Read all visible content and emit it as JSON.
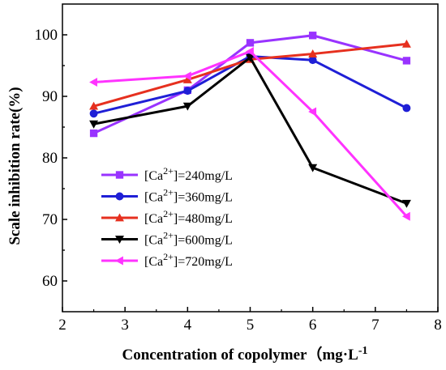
{
  "chart_data": {
    "type": "line",
    "xlabel": "Concentration of copolymer（mg·L",
    "xlabel_sup": "-1",
    "ylabel": "Scale inhibition rate(%)",
    "xlim": [
      2,
      8
    ],
    "ylim": [
      55,
      105
    ],
    "xticks": [
      "2",
      "3",
      "4",
      "5",
      "6",
      "7",
      "8"
    ],
    "yticks": [
      "60",
      "70",
      "80",
      "90",
      "100"
    ],
    "grid": false,
    "legend_position": "bottom-left",
    "series": [
      {
        "label_prefix": "[Ca",
        "label_sup": "2+",
        "label_suffix": "]=240mg/L",
        "color": "#9933ff",
        "marker": "square",
        "x": [
          2.5,
          4,
          5,
          6,
          7.5
        ],
        "y": [
          84.0,
          91.0,
          98.7,
          99.9,
          95.8
        ]
      },
      {
        "label_prefix": "[Ca",
        "label_sup": "2+",
        "label_suffix": "]=360mg/L",
        "color": "#1f1fd6",
        "marker": "circle",
        "x": [
          2.5,
          4,
          5,
          6,
          7.5
        ],
        "y": [
          87.2,
          90.9,
          96.5,
          95.9,
          88.1
        ]
      },
      {
        "label_prefix": "[Ca",
        "label_sup": "2+",
        "label_suffix": "]=480mg/L",
        "color": "#e6301f",
        "marker": "triangle-up",
        "x": [
          2.5,
          4,
          5,
          6,
          7.5
        ],
        "y": [
          88.4,
          92.7,
          96.0,
          96.9,
          98.5
        ]
      },
      {
        "label_prefix": "[Ca",
        "label_sup": "2+",
        "label_suffix": "]=600mg/L",
        "color": "#000000",
        "marker": "triangle-down",
        "x": [
          2.5,
          4,
          5,
          6,
          7.5
        ],
        "y": [
          85.5,
          88.4,
          96.3,
          78.4,
          72.6
        ]
      },
      {
        "label_prefix": "[Ca",
        "label_sup": "2+",
        "label_suffix": "]=720mg/L",
        "color": "#ff33ff",
        "marker": "triangle-left",
        "x": [
          2.5,
          4,
          5,
          6,
          7.5
        ],
        "y": [
          92.3,
          93.3,
          97.3,
          87.5,
          70.5
        ]
      }
    ]
  }
}
